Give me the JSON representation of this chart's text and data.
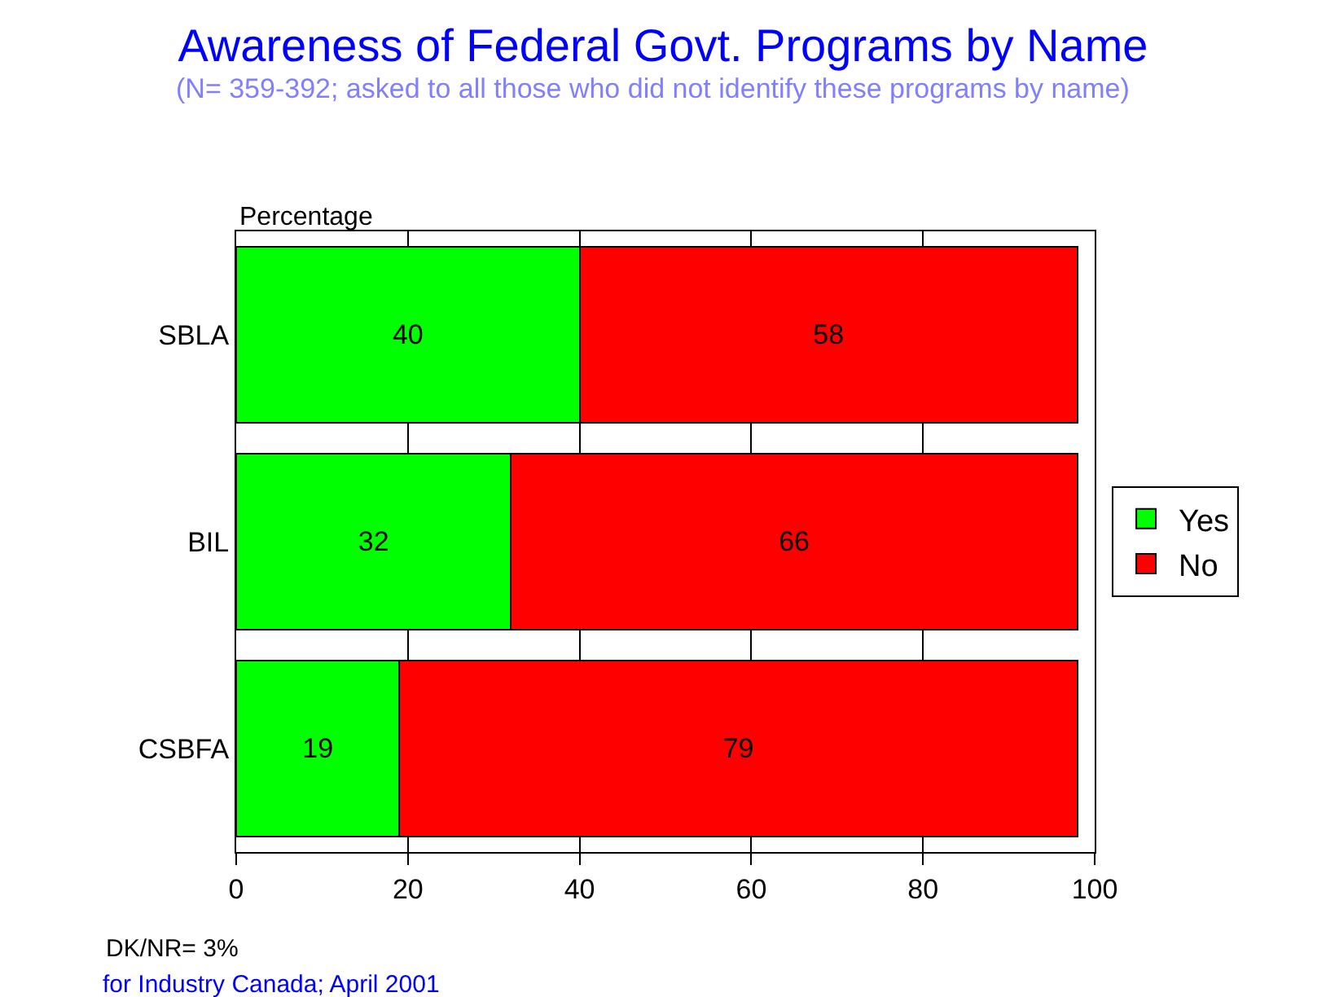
{
  "chart_data": {
    "type": "bar",
    "orientation": "horizontal",
    "stacked": true,
    "title": "Awareness of Federal Govt. Programs by Name",
    "subtitle": "(N= 359-392; asked to all those who did not identify these programs by name)",
    "xlabel": "Percentage",
    "categories": [
      "SBLA",
      "BIL",
      "CSBFA"
    ],
    "series": [
      {
        "name": "Yes",
        "color": "#00ff00",
        "values": [
          40,
          32,
          19
        ]
      },
      {
        "name": "No",
        "color": "#ff0000",
        "values": [
          58,
          66,
          79
        ]
      }
    ],
    "xlim": [
      0,
      100
    ],
    "xticks": [
      0,
      20,
      40,
      60,
      80,
      100
    ],
    "grid": "x",
    "legend": "right",
    "data_labels": true,
    "annotations": [
      "DK/NR= 3%",
      "for Industry Canada; April 2001"
    ]
  }
}
